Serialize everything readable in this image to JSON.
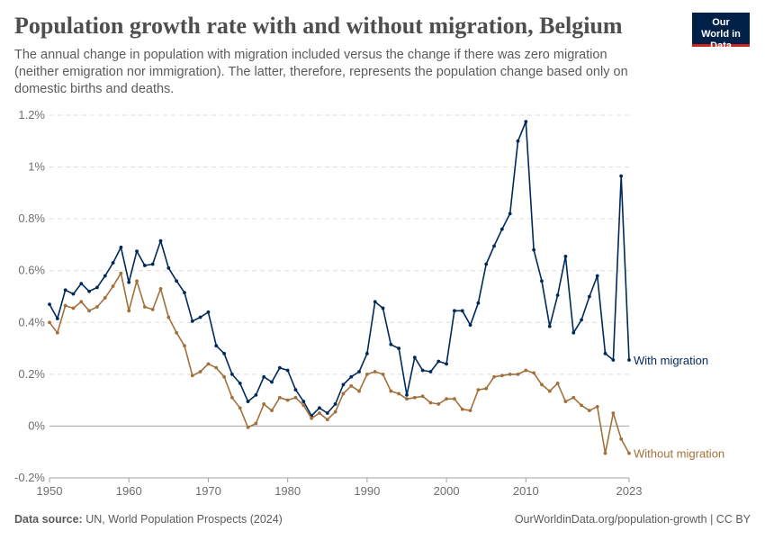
{
  "header": {
    "title": "Population growth rate with and without migration, Belgium",
    "subtitle": "The annual change in population with migration included versus the change if there was zero migration (neither emigration nor immigration). The latter, therefore, represents the population change based only on domestic births and deaths.",
    "logo_text": "Our World in Data"
  },
  "footer": {
    "source_label": "Data source:",
    "source_text": "UN, World Population Prospects (2024)",
    "url": "OurWorldinData.org/population-growth | CC BY"
  },
  "chart_data": {
    "type": "line",
    "title": "Population growth rate with and without migration, Belgium",
    "xlabel": "",
    "ylabel": "",
    "xlim": [
      1950,
      2023
    ],
    "ylim": [
      -0.2,
      1.2
    ],
    "x_ticks": [
      "1950",
      "1960",
      "1970",
      "1980",
      "1990",
      "2000",
      "2010",
      "2023"
    ],
    "y_ticks": [
      "-0.2%",
      "0%",
      "0.2%",
      "0.4%",
      "0.6%",
      "0.8%",
      "1%",
      "1.2%"
    ],
    "y_tick_values": [
      -0.2,
      0,
      0.2,
      0.4,
      0.6,
      0.8,
      1.0,
      1.2
    ],
    "grid": "horizontal dashed",
    "legend": "inline labels at right end of lines",
    "x": [
      1950,
      1951,
      1952,
      1953,
      1954,
      1955,
      1956,
      1957,
      1958,
      1959,
      1960,
      1961,
      1962,
      1963,
      1964,
      1965,
      1966,
      1967,
      1968,
      1969,
      1970,
      1971,
      1972,
      1973,
      1974,
      1975,
      1976,
      1977,
      1978,
      1979,
      1980,
      1981,
      1982,
      1983,
      1984,
      1985,
      1986,
      1987,
      1988,
      1989,
      1990,
      1991,
      1992,
      1993,
      1994,
      1995,
      1996,
      1997,
      1998,
      1999,
      2000,
      2001,
      2002,
      2003,
      2004,
      2005,
      2006,
      2007,
      2008,
      2009,
      2010,
      2011,
      2012,
      2013,
      2014,
      2015,
      2016,
      2017,
      2018,
      2019,
      2020,
      2021,
      2022,
      2023
    ],
    "series": [
      {
        "name": "With migration",
        "color": "#00295b",
        "values": [
          0.47,
          0.415,
          0.525,
          0.51,
          0.55,
          0.52,
          0.535,
          0.58,
          0.63,
          0.69,
          0.555,
          0.675,
          0.62,
          0.625,
          0.715,
          0.61,
          0.56,
          0.515,
          0.405,
          0.42,
          0.44,
          0.31,
          0.28,
          0.2,
          0.165,
          0.095,
          0.12,
          0.19,
          0.17,
          0.225,
          0.215,
          0.14,
          0.095,
          0.04,
          0.07,
          0.05,
          0.085,
          0.16,
          0.19,
          0.21,
          0.28,
          0.48,
          0.455,
          0.315,
          0.3,
          0.12,
          0.265,
          0.215,
          0.21,
          0.25,
          0.24,
          0.445,
          0.445,
          0.39,
          0.475,
          0.625,
          0.695,
          0.76,
          0.82,
          1.1,
          1.175,
          0.68,
          0.56,
          0.385,
          0.505,
          0.655,
          0.36,
          0.41,
          0.5,
          0.58,
          0.28,
          0.255,
          0.965,
          0.255
        ]
      },
      {
        "name": "Without migration",
        "color": "#a2703b",
        "values": [
          0.4,
          0.36,
          0.465,
          0.455,
          0.48,
          0.445,
          0.46,
          0.495,
          0.54,
          0.59,
          0.445,
          0.56,
          0.46,
          0.45,
          0.53,
          0.42,
          0.36,
          0.31,
          0.195,
          0.21,
          0.24,
          0.225,
          0.19,
          0.11,
          0.07,
          -0.005,
          0.01,
          0.085,
          0.06,
          0.11,
          0.1,
          0.11,
          0.08,
          0.03,
          0.05,
          0.025,
          0.055,
          0.125,
          0.155,
          0.135,
          0.2,
          0.21,
          0.2,
          0.135,
          0.125,
          0.105,
          0.11,
          0.115,
          0.09,
          0.085,
          0.105,
          0.105,
          0.065,
          0.06,
          0.14,
          0.145,
          0.19,
          0.195,
          0.2,
          0.2,
          0.215,
          0.205,
          0.16,
          0.135,
          0.165,
          0.095,
          0.11,
          0.08,
          0.06,
          0.075,
          -0.105,
          0.05,
          -0.05,
          -0.105
        ]
      }
    ]
  }
}
